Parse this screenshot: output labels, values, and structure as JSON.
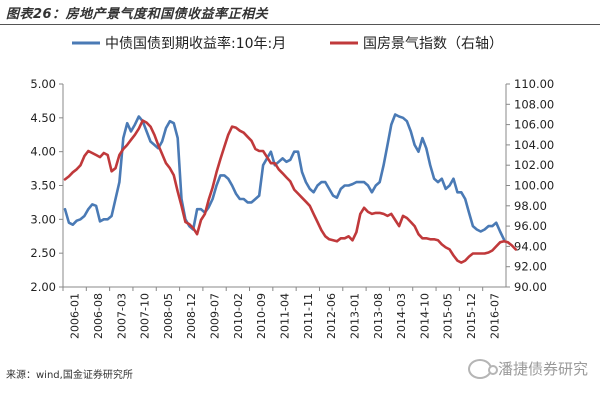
{
  "title": "图表26：房地产景气度和国债收益率正相关",
  "source": "来源：wind,国金证券研究所",
  "watermark": "潘捷债券研究",
  "chart_data": {
    "type": "line",
    "dual_axis": true,
    "legend_position": "top",
    "grid": false,
    "y_left": {
      "min": 2.0,
      "max": 5.0,
      "ticks": [
        2.0,
        2.5,
        3.0,
        3.5,
        4.0,
        4.5,
        5.0
      ],
      "labels": [
        "2.00",
        "2.50",
        "3.00",
        "3.50",
        "4.00",
        "4.50",
        "5.00"
      ]
    },
    "y_right": {
      "min": 90,
      "max": 110,
      "ticks": [
        90,
        92,
        94,
        96,
        98,
        100,
        102,
        104,
        106,
        108,
        110
      ],
      "labels": [
        "90.00",
        "92.00",
        "94.00",
        "96.00",
        "98.00",
        "100.00",
        "102.00",
        "104.00",
        "106.00",
        "108.00",
        "110.00"
      ]
    },
    "x_ticks": [
      "2006-01",
      "2006-08",
      "2007-03",
      "2007-10",
      "2008-05",
      "2008-12",
      "2009-07",
      "2010-02",
      "2010-09",
      "2011-04",
      "2011-11",
      "2012-06",
      "2013-01",
      "2013-08",
      "2014-03",
      "2014-10",
      "2015-05",
      "2015-12",
      "2016-07"
    ],
    "series": [
      {
        "name": "中债国债到期收益率:10年:月",
        "axis": "left",
        "color": "#4a7ab5",
        "values": [
          3.15,
          2.95,
          2.92,
          2.98,
          3.0,
          3.05,
          3.15,
          3.22,
          3.2,
          2.97,
          3.0,
          3.0,
          3.05,
          3.3,
          3.55,
          4.2,
          4.42,
          4.3,
          4.4,
          4.52,
          4.45,
          4.3,
          4.15,
          4.1,
          4.05,
          4.15,
          4.35,
          4.45,
          4.42,
          4.2,
          3.3,
          3.0,
          2.9,
          2.85,
          3.15,
          3.15,
          3.1,
          3.18,
          3.3,
          3.5,
          3.65,
          3.65,
          3.6,
          3.5,
          3.38,
          3.3,
          3.3,
          3.25,
          3.25,
          3.3,
          3.35,
          3.8,
          3.9,
          4.0,
          3.8,
          3.85,
          3.9,
          3.85,
          3.88,
          4.0,
          4.0,
          3.7,
          3.55,
          3.45,
          3.4,
          3.5,
          3.55,
          3.55,
          3.45,
          3.35,
          3.32,
          3.45,
          3.5,
          3.5,
          3.52,
          3.55,
          3.55,
          3.55,
          3.5,
          3.4,
          3.5,
          3.55,
          3.8,
          4.1,
          4.4,
          4.55,
          4.52,
          4.5,
          4.45,
          4.3,
          4.1,
          4.0,
          4.2,
          4.05,
          3.8,
          3.6,
          3.55,
          3.6,
          3.45,
          3.5,
          3.6,
          3.4,
          3.4,
          3.3,
          3.1,
          2.9,
          2.85,
          2.82,
          2.85,
          2.9,
          2.9,
          2.95,
          2.82,
          2.7
        ]
      },
      {
        "name": "国房景气指数（右轴）",
        "axis": "right",
        "color": "#c0393b",
        "values": [
          100.6,
          100.9,
          101.3,
          101.6,
          102.0,
          102.9,
          103.4,
          103.2,
          103.0,
          102.8,
          103.2,
          103.0,
          101.4,
          101.7,
          103.0,
          103.6,
          104.0,
          104.5,
          105.0,
          105.6,
          106.4,
          106.2,
          105.8,
          105.0,
          104.0,
          103.1,
          102.2,
          101.7,
          101.0,
          99.4,
          98.0,
          96.4,
          96.2,
          95.8,
          95.2,
          96.6,
          97.2,
          98.6,
          99.8,
          101.3,
          102.6,
          103.8,
          105.0,
          105.8,
          105.7,
          105.4,
          105.2,
          104.8,
          104.4,
          103.6,
          103.4,
          103.4,
          102.8,
          102.2,
          102.2,
          101.6,
          101.2,
          100.8,
          100.4,
          99.6,
          99.2,
          98.8,
          98.4,
          98.0,
          97.2,
          96.4,
          95.6,
          95.0,
          94.7,
          94.6,
          94.5,
          94.8,
          94.8,
          95.0,
          94.6,
          95.4,
          97.2,
          97.8,
          97.4,
          97.2,
          97.3,
          97.3,
          97.2,
          97.0,
          97.2,
          96.6,
          96.0,
          97.0,
          96.8,
          96.4,
          96.0,
          95.2,
          94.8,
          94.8,
          94.7,
          94.7,
          94.6,
          94.2,
          93.9,
          93.7,
          93.1,
          92.6,
          92.4,
          92.6,
          93.0,
          93.3,
          93.3,
          93.3,
          93.3,
          93.4,
          93.6,
          94.0,
          94.4,
          94.5,
          94.4,
          94.1,
          93.7
        ]
      }
    ]
  }
}
